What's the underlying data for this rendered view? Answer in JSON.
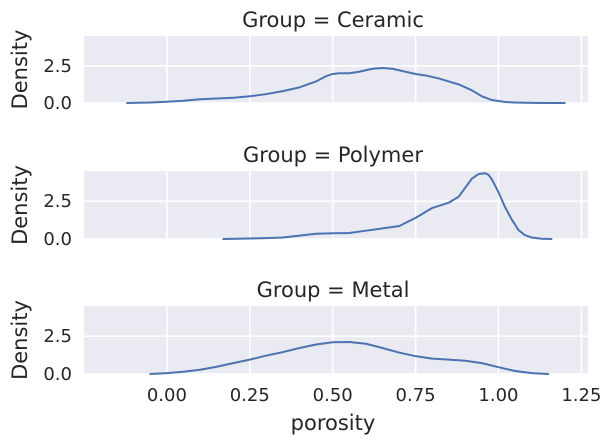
{
  "chart_data": {
    "type": "kde",
    "facet_variable": "Group",
    "x_label": "porosity",
    "y_label": "Density",
    "xlim": [
      -0.25,
      1.27
    ],
    "ylim": [
      0,
      4.5
    ],
    "x_ticks": [
      "0.00",
      "0.25",
      "0.50",
      "0.75",
      "1.00",
      "1.25"
    ],
    "x_tick_values": [
      0,
      0.25,
      0.5,
      0.75,
      1.0,
      1.25
    ],
    "y_ticks": [
      "0.0",
      "2.5"
    ],
    "y_tick_values": [
      0,
      2.5
    ],
    "grid": true,
    "line_color": "#4c72b0",
    "panels": [
      {
        "title": "Group = Ceramic",
        "x": [
          -0.12,
          -0.05,
          0.0,
          0.05,
          0.1,
          0.15,
          0.2,
          0.25,
          0.3,
          0.35,
          0.4,
          0.45,
          0.48,
          0.5,
          0.52,
          0.55,
          0.58,
          0.62,
          0.65,
          0.68,
          0.72,
          0.75,
          0.78,
          0.82,
          0.85,
          0.88,
          0.92,
          0.95,
          0.98,
          1.02,
          1.05,
          1.1,
          1.15,
          1.2
        ],
        "y": [
          0.0,
          0.03,
          0.08,
          0.15,
          0.25,
          0.3,
          0.35,
          0.45,
          0.6,
          0.8,
          1.05,
          1.45,
          1.8,
          1.95,
          2.0,
          2.0,
          2.1,
          2.3,
          2.35,
          2.3,
          2.1,
          1.95,
          1.85,
          1.65,
          1.45,
          1.25,
          0.85,
          0.45,
          0.2,
          0.07,
          0.03,
          0.01,
          0.0,
          0.0
        ]
      },
      {
        "title": "Group = Polymer",
        "x": [
          0.17,
          0.25,
          0.3,
          0.35,
          0.4,
          0.45,
          0.5,
          0.55,
          0.6,
          0.65,
          0.7,
          0.75,
          0.8,
          0.85,
          0.88,
          0.9,
          0.92,
          0.94,
          0.96,
          0.97,
          0.98,
          1.0,
          1.02,
          1.04,
          1.06,
          1.08,
          1.1,
          1.13,
          1.16
        ],
        "y": [
          0.0,
          0.03,
          0.06,
          0.1,
          0.22,
          0.35,
          0.38,
          0.4,
          0.55,
          0.7,
          0.85,
          1.4,
          2.05,
          2.4,
          2.8,
          3.4,
          4.0,
          4.3,
          4.35,
          4.25,
          3.95,
          3.1,
          2.1,
          1.3,
          0.6,
          0.25,
          0.1,
          0.02,
          0.0
        ]
      },
      {
        "title": "Group = Metal",
        "x": [
          -0.05,
          0.0,
          0.05,
          0.1,
          0.15,
          0.2,
          0.25,
          0.3,
          0.35,
          0.4,
          0.45,
          0.5,
          0.55,
          0.6,
          0.65,
          0.7,
          0.75,
          0.8,
          0.85,
          0.9,
          0.95,
          1.0,
          1.05,
          1.1,
          1.15
        ],
        "y": [
          0.0,
          0.06,
          0.15,
          0.28,
          0.48,
          0.72,
          0.95,
          1.22,
          1.45,
          1.72,
          1.95,
          2.1,
          2.12,
          2.0,
          1.72,
          1.42,
          1.18,
          1.02,
          0.95,
          0.88,
          0.72,
          0.45,
          0.2,
          0.06,
          0.0
        ]
      }
    ]
  }
}
